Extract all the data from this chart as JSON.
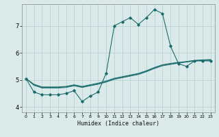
{
  "xlabel": "Humidex (Indice chaleur)",
  "xlim": [
    -0.5,
    23.5
  ],
  "ylim": [
    3.8,
    7.8
  ],
  "bg_color": "#daeaea",
  "grid_color": "#b8d4d4",
  "line_color": "#1a6b6b",
  "xticks": [
    0,
    1,
    2,
    3,
    4,
    5,
    6,
    7,
    8,
    9,
    10,
    11,
    12,
    13,
    14,
    15,
    16,
    17,
    18,
    19,
    20,
    21,
    22,
    23
  ],
  "yticks": [
    4,
    5,
    6,
    7
  ],
  "series": [
    [
      5.05,
      4.55,
      4.45,
      4.45,
      4.45,
      4.5,
      4.6,
      4.2,
      4.4,
      4.55,
      5.25,
      7.0,
      7.15,
      7.3,
      7.05,
      7.3,
      7.6,
      7.45,
      6.25,
      5.6,
      5.5,
      5.7,
      5.7,
      5.7
    ],
    [
      5.05,
      4.8,
      4.7,
      4.7,
      4.7,
      4.72,
      4.78,
      4.72,
      4.78,
      4.84,
      4.92,
      5.02,
      5.08,
      5.14,
      5.2,
      5.3,
      5.42,
      5.52,
      5.57,
      5.62,
      5.66,
      5.7,
      5.72,
      5.73
    ],
    [
      5.05,
      4.82,
      4.72,
      4.72,
      4.72,
      4.74,
      4.8,
      4.74,
      4.8,
      4.86,
      4.94,
      5.04,
      5.1,
      5.16,
      5.22,
      5.32,
      5.44,
      5.54,
      5.59,
      5.63,
      5.67,
      5.71,
      5.73,
      5.74
    ],
    [
      5.05,
      4.84,
      4.74,
      4.74,
      4.74,
      4.76,
      4.82,
      4.76,
      4.82,
      4.88,
      4.96,
      5.06,
      5.12,
      5.18,
      5.24,
      5.34,
      5.46,
      5.56,
      5.61,
      5.65,
      5.68,
      5.72,
      5.74,
      5.75
    ]
  ]
}
